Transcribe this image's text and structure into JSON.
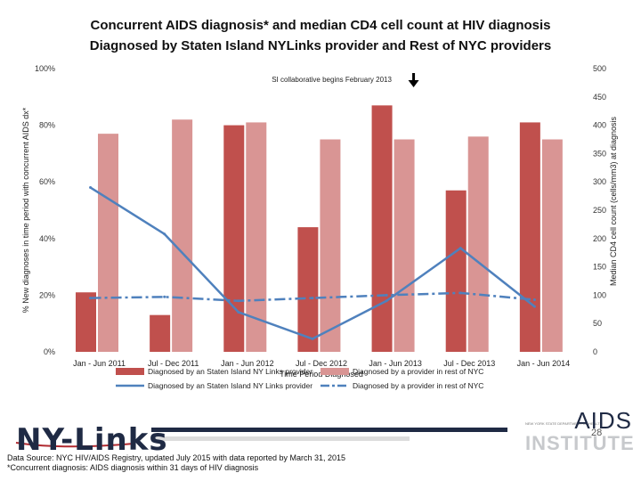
{
  "page": {
    "title_line1": "Concurrent AIDS diagnosis* and median CD4 cell count at HIV diagnosis",
    "title_line2": "Diagnosed by Staten Island NYLinks provider and Rest of NYC providers",
    "source": "Data Source: NYC HIV/AIDS Registry, updated July 2015 with data reported by March 31, 2015",
    "footnote": "*Concurrent diagnosis: AIDS diagnosis within 31 days of HIV diagnosis",
    "logo_nylinks": "NY-Links",
    "logo_aids": "AIDS",
    "logo_institute": "INSTITUTE",
    "logo_small": "NEW YORK STATE DEPARTMENT OF HEALTH",
    "page_number": "28"
  },
  "chart_data": {
    "type": "bar+line",
    "categories": [
      "Jan - Jun 2011",
      "Jul - Dec 2011",
      "Jan - Jun 2012",
      "Jul - Dec 2012",
      "Jan - Jun 2013",
      "Jul - Dec 2013",
      "Jan - Jun 2014"
    ],
    "bar_series": [
      {
        "name": "Diagnosed by an Staten Island NY Links provider",
        "axis": "left",
        "color": "#c0504d",
        "values": [
          21,
          13,
          80,
          44,
          87,
          57,
          81
        ]
      },
      {
        "name": "Diagnosed by a provider in rest of NYC",
        "axis": "left",
        "color": "#d99594",
        "values": [
          77,
          82,
          81,
          75,
          75,
          76,
          75
        ]
      }
    ],
    "line_series": [
      {
        "name": "Diagnosed by an Staten Island NY Links provider",
        "axis": "right",
        "color": "#4f81bd",
        "style": "solid",
        "values": [
          290,
          208,
          70,
          23,
          90,
          183,
          80
        ]
      },
      {
        "name": "Diagnosed by a provider in rest of NYC",
        "axis": "right",
        "color": "#4f81bd",
        "style": "dashdot",
        "values": [
          95,
          97,
          90,
          95,
          100,
          104,
          92
        ]
      }
    ],
    "xlabel": "Time Period Diagnosed",
    "ylabel_left": "% New diagnoses in time period with concurrent AIDS dx*",
    "ylabel_right": "Median CD4 cell count (cells/mm3) at diagnosis",
    "ylim_left": [
      0,
      100
    ],
    "yticks_left": [
      "0%",
      "20%",
      "40%",
      "60%",
      "80%",
      "100%"
    ],
    "ylim_right": [
      0,
      500
    ],
    "yticks_right": [
      "0",
      "50",
      "100",
      "150",
      "200",
      "250",
      "300",
      "350",
      "400",
      "450",
      "500"
    ],
    "annotation": "SI collaborative begins February 2013",
    "annotation_after_category": "Jan - Jun 2013",
    "grid": false,
    "legend_position": "bottom"
  }
}
